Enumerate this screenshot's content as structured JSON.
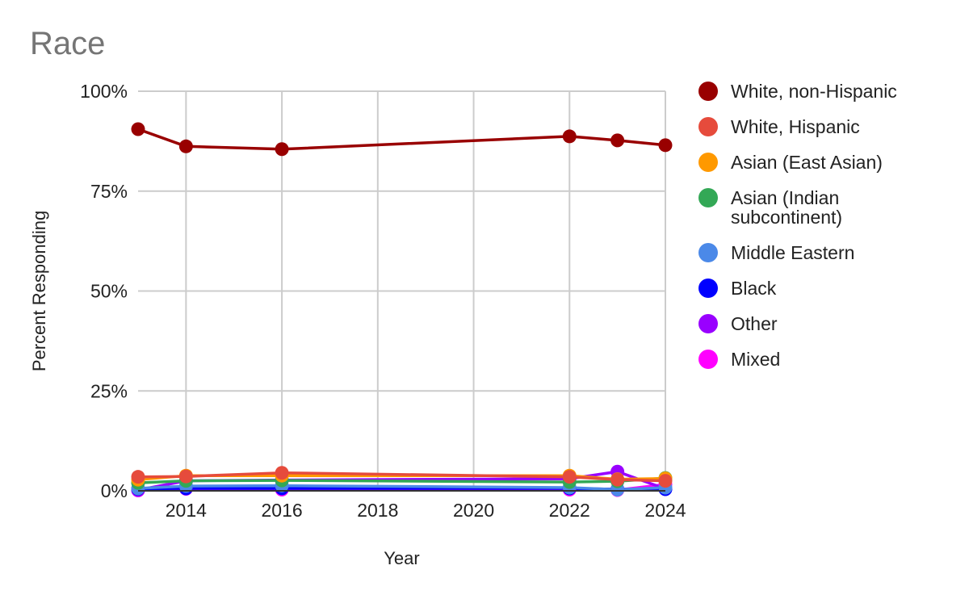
{
  "chart_data": {
    "type": "line",
    "title": "Race",
    "xlabel": "Year",
    "ylabel": "Percent Responding",
    "xlim": [
      2013,
      2024
    ],
    "ylim": [
      0,
      100
    ],
    "x_ticks": [
      2014,
      2016,
      2018,
      2020,
      2022,
      2024
    ],
    "y_ticks": [
      {
        "value": 0,
        "label": "0%"
      },
      {
        "value": 25,
        "label": "25%"
      },
      {
        "value": 50,
        "label": "50%"
      },
      {
        "value": 75,
        "label": "75%"
      },
      {
        "value": 100,
        "label": "100%"
      }
    ],
    "grid": true,
    "legend_position": "right",
    "x": [
      2013,
      2014,
      2016,
      2022,
      2023,
      2024
    ],
    "series": [
      {
        "name": "White, non-Hispanic",
        "color": "#990000",
        "values": [
          90.5,
          86.2,
          85.5,
          88.7,
          87.7,
          86.5
        ]
      },
      {
        "name": "White, Hispanic",
        "color": "#e64b3c",
        "values": [
          3.5,
          3.6,
          4.5,
          3.5,
          2.8,
          2.5
        ]
      },
      {
        "name": "Asian (East Asian)",
        "color": "#ff9900",
        "values": [
          2.8,
          3.8,
          3.8,
          3.8,
          2.9,
          3.1
        ]
      },
      {
        "name": "Asian (Indian subcontinent)",
        "color": "#33a856",
        "values": [
          2.0,
          2.5,
          2.6,
          2.2,
          2.4,
          3.2
        ]
      },
      {
        "name": "Middle Eastern",
        "color": "#4b89e8",
        "values": [
          0.6,
          1.2,
          1.3,
          0.8,
          0.3,
          0.8
        ]
      },
      {
        "name": "Black",
        "color": "#0000ff",
        "values": [
          0.5,
          0.6,
          0.6,
          0.6,
          0.4,
          0.4
        ]
      },
      {
        "name": "Other",
        "color": "#9900ff",
        "values": [
          0.2,
          2.5,
          2.7,
          3.0,
          4.8,
          0.5
        ]
      },
      {
        "name": "Mixed",
        "color": "#ff00ff",
        "values": [
          0.1,
          0.5,
          0.3,
          0.3,
          0.2,
          1.6
        ]
      }
    ]
  }
}
